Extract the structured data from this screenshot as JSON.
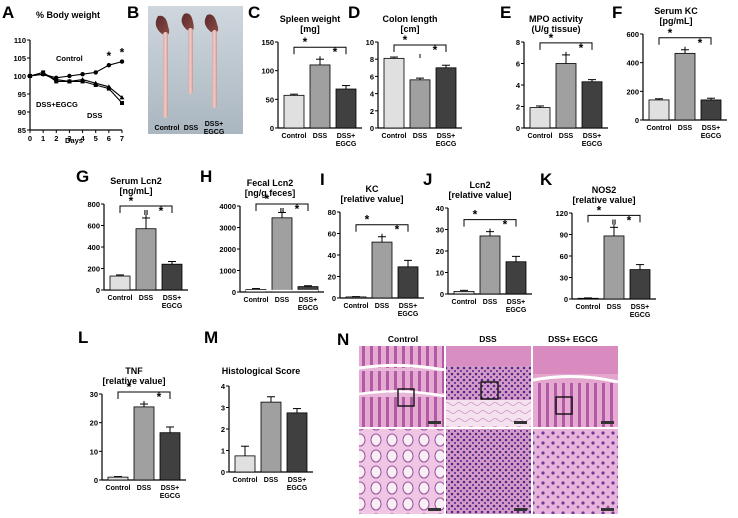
{
  "chart_data": [
    {
      "id": "A",
      "panel_label": "A",
      "type": "line",
      "title": "% Body weight",
      "xlabel": "Days",
      "xlim": [
        0,
        7
      ],
      "ylim": [
        85,
        110
      ],
      "x_ticks": [
        0,
        1,
        2,
        3,
        4,
        5,
        6,
        7
      ],
      "y_ticks": [
        85,
        90,
        95,
        100,
        105,
        110
      ],
      "series": [
        {
          "name": "Control",
          "x": [
            0,
            1,
            2,
            3,
            4,
            5,
            6,
            7
          ],
          "y": [
            100,
            100.5,
            99.5,
            100,
            100.5,
            101,
            103,
            104
          ]
        },
        {
          "name": "DSS+EGCG",
          "x": [
            0,
            1,
            2,
            3,
            4,
            5,
            6,
            7
          ],
          "y": [
            100,
            100.5,
            99,
            98.5,
            99,
            98,
            97,
            94
          ]
        },
        {
          "name": "DSS",
          "x": [
            0,
            1,
            2,
            3,
            4,
            5,
            6,
            7
          ],
          "y": [
            100,
            101,
            98.5,
            98.5,
            98.5,
            97.5,
            96.5,
            92.5
          ]
        }
      ],
      "sig_labels": [
        "*",
        "*"
      ]
    },
    {
      "id": "C",
      "panel_label": "C",
      "type": "bar",
      "title": "Spleen weight",
      "title_line2": "[mg]",
      "categories": [
        "Control",
        "DSS",
        "DSS+ EGCG"
      ],
      "values": [
        57,
        110,
        68
      ],
      "errors": [
        2,
        10,
        6
      ],
      "ylim": [
        0,
        150
      ],
      "y_ticks": [
        0,
        50,
        100,
        150
      ],
      "sig_labels": [
        "*",
        "*"
      ],
      "mark": "",
      "color_by_category": [
        "#e0e0e0",
        "#a0a0a0",
        "#404040"
      ]
    },
    {
      "id": "D",
      "panel_label": "D",
      "type": "bar",
      "title": "Colon length",
      "title_line2": "[cm]",
      "categories": [
        "Control",
        "DSS",
        "DSS+ EGCG"
      ],
      "values": [
        8.1,
        5.6,
        7.0
      ],
      "errors": [
        0.15,
        0.2,
        0.3
      ],
      "ylim": [
        0,
        10
      ],
      "y_ticks": [
        0,
        2,
        4,
        6,
        8,
        10
      ],
      "sig_labels": [
        "*",
        "*"
      ],
      "mark": "",
      "color_by_category": [
        "#e0e0e0",
        "#a0a0a0",
        "#404040"
      ]
    },
    {
      "id": "E",
      "panel_label": "E",
      "type": "bar",
      "title": "MPO activity",
      "title_line2": "(U/g tissue)",
      "categories": [
        "Control",
        "DSS",
        "DSS+ EGCG"
      ],
      "values": [
        1.9,
        6.0,
        4.3
      ],
      "errors": [
        0.15,
        0.8,
        0.2
      ],
      "ylim": [
        0,
        8
      ],
      "y_ticks": [
        0,
        2,
        4,
        6,
        8
      ],
      "sig_labels": [
        "*",
        "*"
      ],
      "mark": "",
      "color_by_category": [
        "#e0e0e0",
        "#a0a0a0",
        "#404040"
      ]
    },
    {
      "id": "F",
      "panel_label": "F",
      "type": "bar",
      "title": "Serum KC",
      "title_line2": "[pg/mL]",
      "categories": [
        "Control",
        "DSS",
        "DSS+ EGCG"
      ],
      "values": [
        140,
        465,
        140
      ],
      "errors": [
        8,
        25,
        12
      ],
      "ylim": [
        0,
        600
      ],
      "y_ticks": [
        0,
        200,
        400,
        600
      ],
      "sig_labels": [
        "*",
        "*"
      ],
      "mark": "",
      "color_by_category": [
        "#e0e0e0",
        "#a0a0a0",
        "#404040"
      ]
    },
    {
      "id": "G",
      "panel_label": "G",
      "type": "bar",
      "title": "Serum Lcn2",
      "title_line2": "[ng/mL]",
      "categories": [
        "Control",
        "DSS",
        "DSS+ EGCG"
      ],
      "values": [
        130,
        570,
        240
      ],
      "errors": [
        10,
        100,
        25
      ],
      "ylim": [
        0,
        800
      ],
      "y_ticks": [
        0,
        200,
        400,
        600,
        800
      ],
      "sig_labels": [
        "*",
        "*"
      ],
      "mark": "II",
      "color_by_category": [
        "#e0e0e0",
        "#a0a0a0",
        "#404040"
      ]
    },
    {
      "id": "H",
      "panel_label": "H",
      "type": "bar",
      "title": "Fecal Lcn2",
      "title_line2": "[ng/g feces]",
      "categories": [
        "Control",
        "DSS",
        "DSS+ EGCG"
      ],
      "values": [
        120,
        3450,
        250
      ],
      "errors": [
        40,
        250,
        40
      ],
      "ylim": [
        0,
        4000
      ],
      "y_ticks": [
        0,
        1000,
        2000,
        3000,
        4000
      ],
      "sig_labels": [
        "*",
        "*"
      ],
      "mark": "II",
      "color_by_category": [
        "#e0e0e0",
        "#a0a0a0",
        "#404040"
      ]
    },
    {
      "id": "I",
      "panel_label": "I",
      "type": "bar",
      "title": "KC",
      "title_line2": "[relative value]",
      "categories": [
        "Control",
        "DSS",
        "DSS+ EGCG"
      ],
      "values": [
        1,
        52,
        29
      ],
      "errors": [
        0.3,
        5,
        6
      ],
      "ylim": [
        0,
        80
      ],
      "y_ticks": [
        0,
        20,
        40,
        60,
        80
      ],
      "sig_labels": [
        "*",
        "*"
      ],
      "mark": "",
      "color_by_category": [
        "#e0e0e0",
        "#a0a0a0",
        "#404040"
      ]
    },
    {
      "id": "J",
      "panel_label": "J",
      "type": "bar",
      "title": "Lcn2",
      "title_line2": "[relative value]",
      "categories": [
        "Control",
        "DSS",
        "DSS+ EGCG"
      ],
      "values": [
        1.2,
        27,
        15
      ],
      "errors": [
        0.5,
        2,
        2.5
      ],
      "ylim": [
        0,
        40
      ],
      "y_ticks": [
        0,
        10,
        20,
        30,
        40
      ],
      "sig_labels": [
        "*",
        "*"
      ],
      "mark": "",
      "color_by_category": [
        "#e0e0e0",
        "#a0a0a0",
        "#404040"
      ]
    },
    {
      "id": "K",
      "panel_label": "K",
      "type": "bar",
      "title": "NOS2",
      "title_line2": "[relative value]",
      "categories": [
        "Control",
        "DSS",
        "DSS+ EGCG"
      ],
      "values": [
        1,
        88,
        41
      ],
      "errors": [
        0.5,
        12,
        7
      ],
      "ylim": [
        0,
        120
      ],
      "y_ticks": [
        0,
        30,
        60,
        90,
        120
      ],
      "sig_labels": [
        "*",
        "*"
      ],
      "mark": "II",
      "color_by_category": [
        "#e0e0e0",
        "#a0a0a0",
        "#404040"
      ]
    },
    {
      "id": "L",
      "panel_label": "L",
      "type": "bar",
      "title": "TNF",
      "title_line2": "[relative value]",
      "categories": [
        "Control",
        "DSS",
        "DSS+ EGCG"
      ],
      "values": [
        1,
        25.5,
        16.5
      ],
      "errors": [
        0.2,
        1,
        2
      ],
      "ylim": [
        0,
        30
      ],
      "y_ticks": [
        0,
        10,
        20,
        30
      ],
      "sig_labels": [
        "*",
        "*"
      ],
      "mark": "",
      "color_by_category": [
        "#e0e0e0",
        "#a0a0a0",
        "#404040"
      ]
    },
    {
      "id": "M",
      "panel_label": "M",
      "type": "bar",
      "title": "Histological Score",
      "title_line2": "",
      "categories": [
        "Control",
        "DSS",
        "DSS+ EGCG"
      ],
      "values": [
        0.75,
        3.25,
        2.75
      ],
      "errors": [
        0.45,
        0.25,
        0.2
      ],
      "ylim": [
        0,
        4
      ],
      "y_ticks": [
        0,
        1,
        2,
        3,
        4
      ],
      "sig_labels": [],
      "mark": "",
      "color_by_category": [
        "#e0e0e0",
        "#a0a0a0",
        "#404040"
      ]
    }
  ],
  "photo_B": {
    "label": "B",
    "captions": [
      "Control",
      "DSS",
      "DSS+",
      "EGCG"
    ]
  },
  "histology_N": {
    "label": "N",
    "columns": [
      "Control",
      "DSS",
      "DSS+ EGCG"
    ]
  }
}
